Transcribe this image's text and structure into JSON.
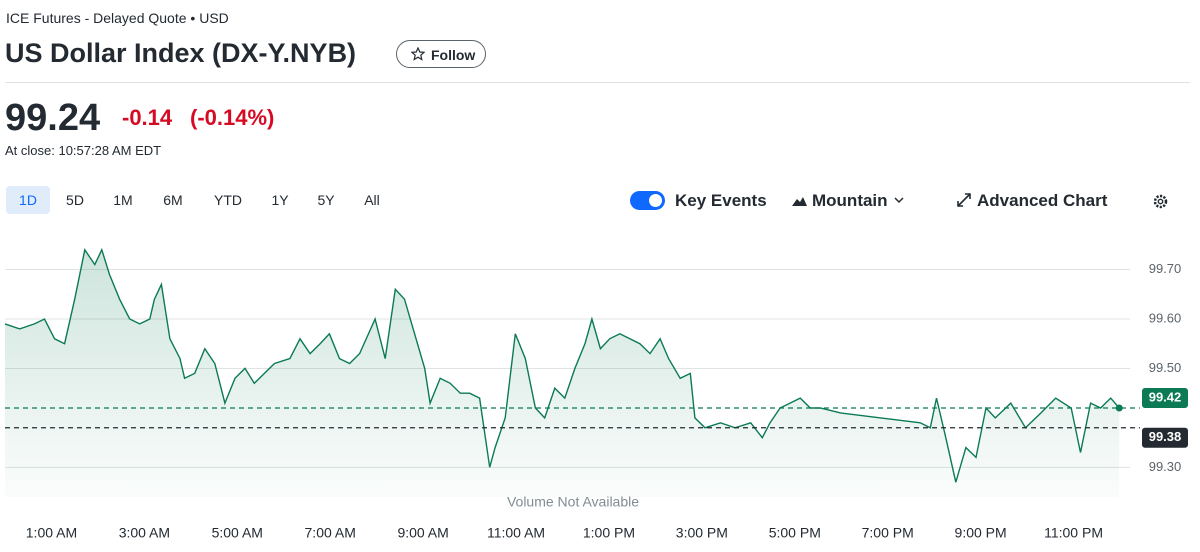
{
  "header": {
    "exchange": "ICE Futures - Delayed Quote • USD",
    "title": "US Dollar Index (DX-Y.NYB)",
    "follow": "Follow"
  },
  "quote": {
    "price": "99.24",
    "change": "-0.14",
    "change_percent": "(-0.14%)",
    "close_time": "At close: 10:57:28 AM EDT"
  },
  "toolbar": {
    "ranges": [
      "1D",
      "5D",
      "1M",
      "6M",
      "YTD",
      "1Y",
      "5Y",
      "All"
    ],
    "key_events": "Key Events",
    "chart_style": "Mountain",
    "advanced": "Advanced Chart"
  },
  "chart_data": {
    "type": "line",
    "annotation": "Volume Not Available",
    "color": "#0b7a55",
    "grid": true,
    "x": [
      "12:00 AM",
      "12:19 AM",
      "12:38 AM",
      "12:51 AM",
      "1:04 AM",
      "1:17 AM",
      "1:30 AM",
      "1:43 AM",
      "1:56 AM",
      "2:05 AM",
      "2:15 AM",
      "2:28 AM",
      "2:41 AM",
      "2:54 AM",
      "3:07 AM",
      "3:13 AM",
      "3:22 AM",
      "3:33 AM",
      "3:46 AM",
      "3:52 AM",
      "4:05 AM",
      "4:18 AM",
      "4:31 AM",
      "4:44 AM",
      "4:57 AM",
      "5:10 AM",
      "5:22 AM",
      "5:35 AM",
      "5:48 AM",
      "6:08 AM",
      "6:21 AM",
      "6:34 AM",
      "6:47 AM",
      "6:59 AM",
      "7:12 AM",
      "7:25 AM",
      "7:38 AM",
      "7:58 AM",
      "8:11 AM",
      "8:24 AM",
      "8:36 AM",
      "8:49 AM",
      "9:02 AM",
      "9:09 AM",
      "9:22 AM",
      "9:35 AM",
      "9:48 AM",
      "10:00 AM",
      "10:13 AM",
      "10:26 AM",
      "10:33 AM",
      "10:46 AM",
      "10:59 AM",
      "11:12 AM",
      "11:25 AM",
      "11:37 AM",
      "11:50 AM",
      "12:03 PM",
      "12:16 PM",
      "12:29 PM",
      "12:38 PM",
      "12:49 PM",
      "1:01 PM",
      "1:14 PM",
      "1:27 PM",
      "1:40 PM",
      "1:53 PM",
      "2:06 PM",
      "2:17 PM",
      "2:32 PM",
      "2:45 PM",
      "2:51 PM",
      "3:04 PM",
      "3:24 PM",
      "3:43 PM",
      "4:03 PM",
      "4:18 PM",
      "4:28 PM",
      "4:41 PM",
      "4:54 PM",
      "5:07 PM",
      "5:20 PM",
      "5:33 PM",
      "5:59 PM",
      "6:51 PM",
      "7:42 PM",
      "7:55 PM",
      "8:03 PM",
      "8:15 PM",
      "8:28 PM",
      "8:41 PM",
      "8:54 PM",
      "9:07 PM",
      "9:19 PM",
      "9:39 PM",
      "9:58 PM",
      "10:18 PM",
      "10:37 PM",
      "10:57 PM",
      "11:09 PM",
      "11:22 PM",
      "11:35 PM",
      "11:48 PM",
      "11:59 PM"
    ],
    "values": [
      99.59,
      99.58,
      99.59,
      99.6,
      99.56,
      99.55,
      99.64,
      99.74,
      99.71,
      99.74,
      99.69,
      99.64,
      99.6,
      99.59,
      99.6,
      99.64,
      99.67,
      99.56,
      99.52,
      99.48,
      99.49,
      99.54,
      99.51,
      99.43,
      99.48,
      99.5,
      99.47,
      99.49,
      99.51,
      99.52,
      99.56,
      99.53,
      99.55,
      99.57,
      99.52,
      99.51,
      99.53,
      99.6,
      99.52,
      99.66,
      99.64,
      99.57,
      99.5,
      99.43,
      99.48,
      99.47,
      99.45,
      99.45,
      99.44,
      99.3,
      99.34,
      99.4,
      99.57,
      99.52,
      99.42,
      99.4,
      99.46,
      99.44,
      99.5,
      99.55,
      99.6,
      99.54,
      99.56,
      99.57,
      99.56,
      99.55,
      99.53,
      99.56,
      99.52,
      99.48,
      99.49,
      99.4,
      99.38,
      99.39,
      99.38,
      99.39,
      99.36,
      99.39,
      99.42,
      99.43,
      99.44,
      99.42,
      99.42,
      99.41,
      99.4,
      99.39,
      99.38,
      99.44,
      99.36,
      99.27,
      99.34,
      99.32,
      99.42,
      99.4,
      99.43,
      99.38,
      99.41,
      99.44,
      99.42,
      99.33,
      99.43,
      99.42,
      99.44,
      99.42
    ],
    "xticks": [
      "1:00 AM",
      "3:00 AM",
      "5:00 AM",
      "7:00 AM",
      "9:00 AM",
      "11:00 AM",
      "1:00 PM",
      "3:00 PM",
      "5:00 PM",
      "7:00 PM",
      "9:00 PM",
      "11:00 PM"
    ],
    "ylim": [
      99.24,
      99.78
    ],
    "yticks": [
      {
        "value": 99.3,
        "label": "99.30"
      },
      {
        "value": 99.5,
        "label": "99.50"
      },
      {
        "value": 99.6,
        "label": "99.60"
      },
      {
        "value": 99.7,
        "label": "99.70"
      }
    ],
    "reference_lines": [
      {
        "value": 99.42,
        "color": "#0b7a55"
      },
      {
        "value": 99.38,
        "color": "#232a31"
      }
    ]
  }
}
